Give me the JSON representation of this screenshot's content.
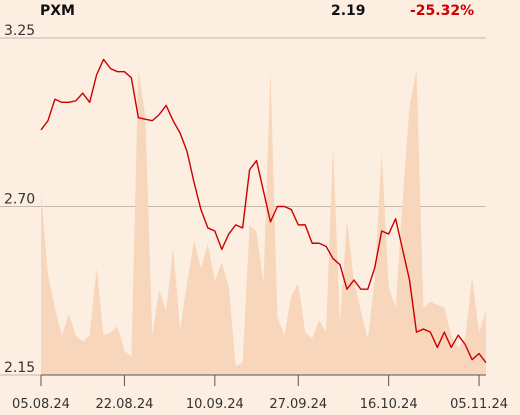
{
  "header": {
    "ticker": "PXM",
    "price": "2.19",
    "change": "-25.32%"
  },
  "colors": {
    "background": "#fcefe2",
    "price_line": "#cc0000",
    "volume_fill": "#f7d6bb",
    "grid": "#b3a596",
    "negative": "#cc0000"
  },
  "chart_data": {
    "type": "line",
    "ylim": [
      2.15,
      3.25
    ],
    "ytick_labels": [
      "3.25",
      "2.70",
      "2.15"
    ],
    "ytick_values": [
      3.25,
      2.7,
      2.15
    ],
    "xtick_labels": [
      "05.08.24",
      "22.08.24",
      "10.09.24",
      "27.09.24",
      "16.10.24",
      "05.11.24"
    ],
    "xtick_index": [
      0,
      12,
      25,
      37,
      50,
      63
    ],
    "grid": "horizontal",
    "series": [
      {
        "kind": "price",
        "values": [
          2.95,
          2.98,
          3.05,
          3.04,
          3.04,
          3.045,
          3.07,
          3.04,
          3.13,
          3.18,
          3.15,
          3.14,
          3.14,
          3.12,
          2.99,
          2.985,
          2.98,
          3.0,
          3.03,
          2.98,
          2.94,
          2.88,
          2.78,
          2.69,
          2.63,
          2.62,
          2.56,
          2.61,
          2.64,
          2.63,
          2.82,
          2.85,
          2.75,
          2.65,
          2.7,
          2.7,
          2.69,
          2.64,
          2.64,
          2.58,
          2.58,
          2.57,
          2.53,
          2.51,
          2.43,
          2.46,
          2.43,
          2.43,
          2.5,
          2.62,
          2.61,
          2.66,
          2.56,
          2.46,
          2.29,
          2.3,
          2.29,
          2.24,
          2.29,
          2.24,
          2.28,
          2.25,
          2.2,
          2.22,
          2.19
        ]
      },
      {
        "kind": "volume",
        "values": [
          0.6,
          0.33,
          0.22,
          0.13,
          0.2,
          0.13,
          0.11,
          0.13,
          0.35,
          0.13,
          0.14,
          0.16,
          0.08,
          0.06,
          1.0,
          0.85,
          0.13,
          0.28,
          0.21,
          0.42,
          0.15,
          0.3,
          0.44,
          0.35,
          0.43,
          0.31,
          0.37,
          0.29,
          0.03,
          0.04,
          0.49,
          0.47,
          0.3,
          1.0,
          0.19,
          0.13,
          0.26,
          0.3,
          0.14,
          0.12,
          0.18,
          0.14,
          0.75,
          0.17,
          0.51,
          0.31,
          0.21,
          0.12,
          0.31,
          0.73,
          0.29,
          0.22,
          0.57,
          0.88,
          1.0,
          0.22,
          0.24,
          0.23,
          0.22,
          0.13,
          0.09,
          0.12,
          0.32,
          0.14,
          0.21
        ]
      }
    ]
  }
}
